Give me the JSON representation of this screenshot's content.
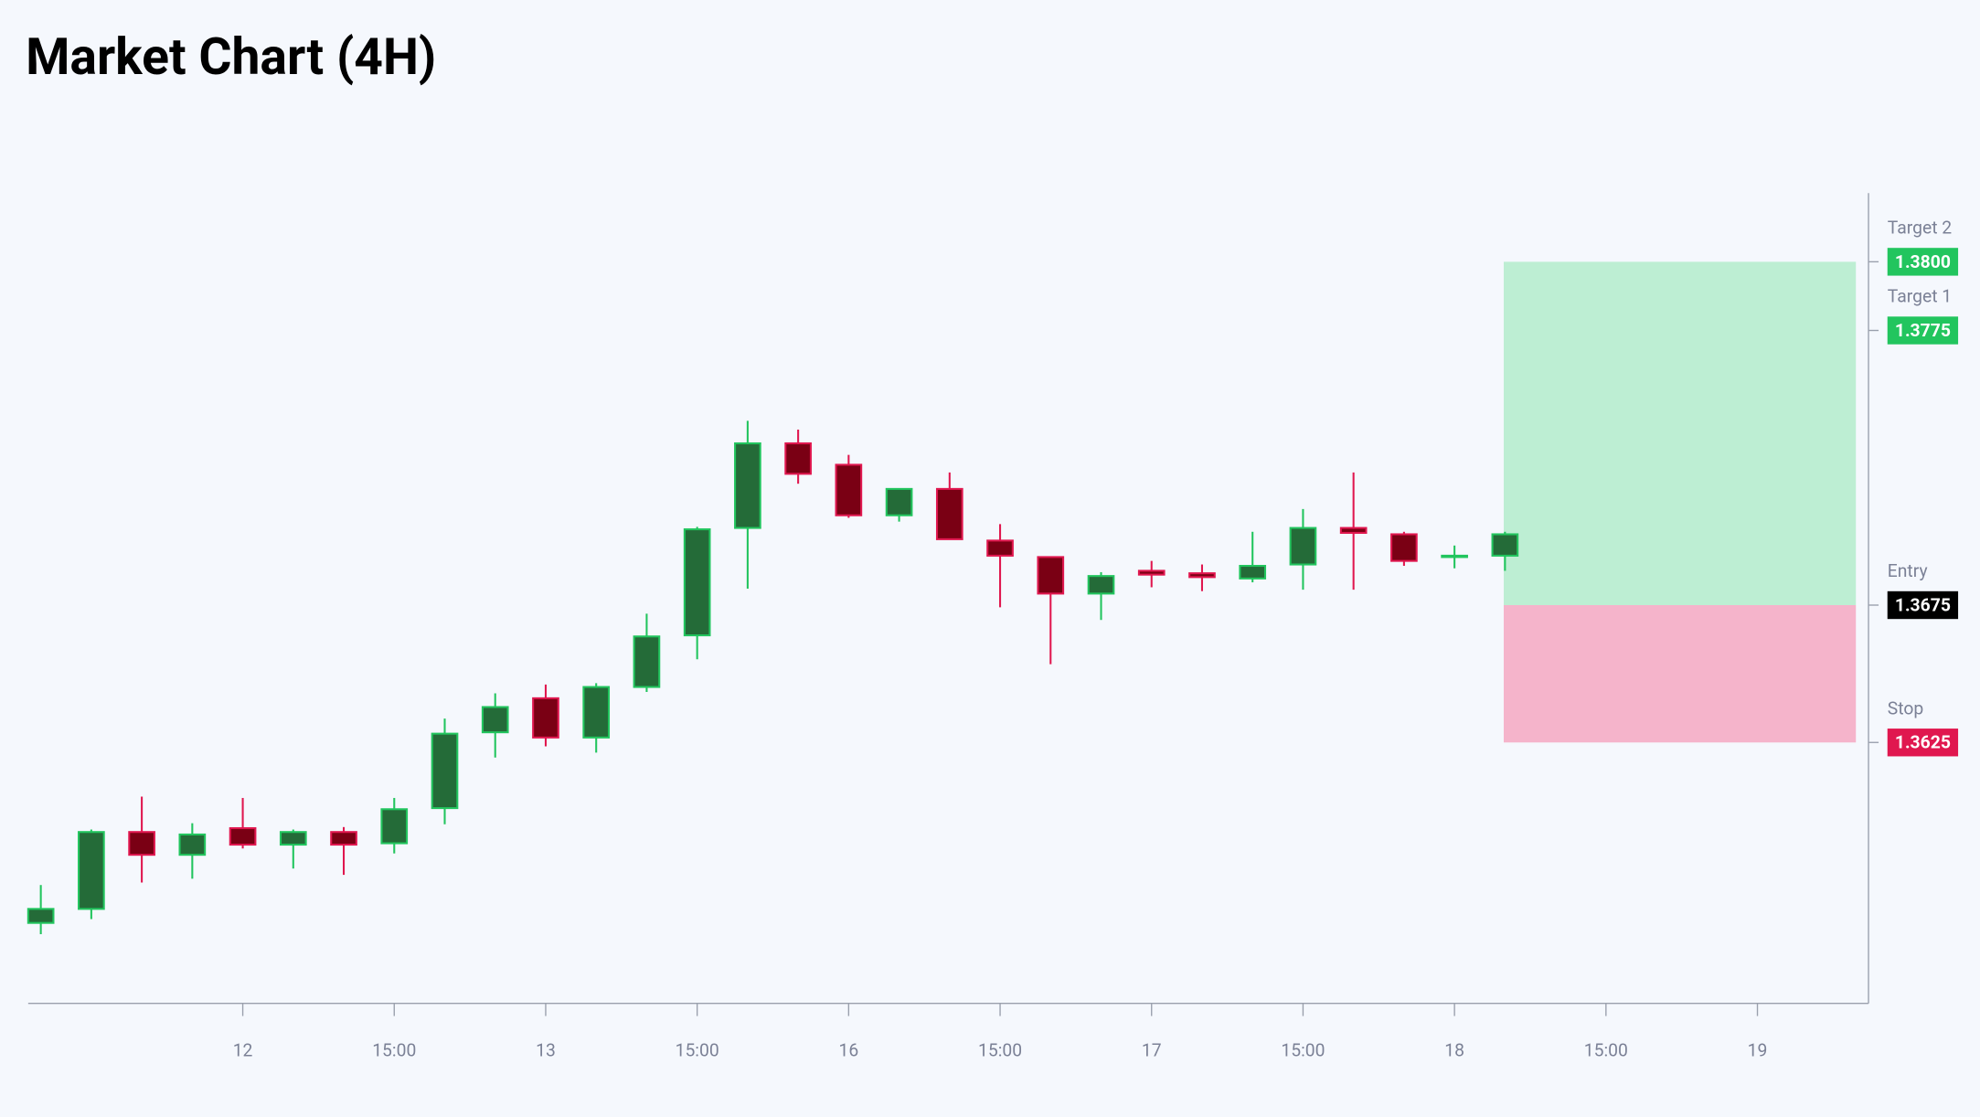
{
  "chart_data": {
    "type": "candlestick",
    "title": "Market Chart (4H)",
    "open": [
      1.35593,
      1.35644,
      1.35924,
      1.35841,
      1.35938,
      1.35878,
      1.35924,
      1.35883,
      1.36011,
      1.36287,
      1.36411,
      1.36268,
      1.36452,
      1.3664,
      1.37031,
      1.37339,
      1.37261,
      1.37077,
      1.37173,
      1.36985,
      1.36925,
      1.36792,
      1.36875,
      1.36866,
      1.36847,
      1.36898,
      1.37031,
      1.37008,
      1.36925,
      1.3693
    ],
    "high": [
      1.35731,
      1.35933,
      1.36053,
      1.35956,
      1.36048,
      1.35933,
      1.35942,
      1.36048,
      1.36337,
      1.36429,
      1.36461,
      1.36466,
      1.36719,
      1.37035,
      1.37421,
      1.37389,
      1.37297,
      1.37173,
      1.37233,
      1.37045,
      1.36925,
      1.3687,
      1.36911,
      1.36898,
      1.37017,
      1.371,
      1.37233,
      1.37017,
      1.36967,
      1.37017
    ],
    "low": [
      1.35552,
      1.35607,
      1.3574,
      1.35754,
      1.35864,
      1.35791,
      1.35768,
      1.35846,
      1.35952,
      1.36195,
      1.36236,
      1.36213,
      1.36434,
      1.36553,
      1.3681,
      1.37192,
      1.37068,
      1.37054,
      1.3699,
      1.36742,
      1.36535,
      1.36696,
      1.36815,
      1.36801,
      1.36833,
      1.36806,
      1.36806,
      1.36893,
      1.36884,
      1.36875
    ],
    "close": [
      1.35644,
      1.35924,
      1.35841,
      1.35915,
      1.35878,
      1.35924,
      1.35878,
      1.36007,
      1.36282,
      1.36379,
      1.36268,
      1.36452,
      1.36636,
      1.37026,
      1.37339,
      1.37228,
      1.37077,
      1.37173,
      1.3699,
      1.3693,
      1.36792,
      1.36856,
      1.36861,
      1.36852,
      1.36893,
      1.37031,
      1.37013,
      1.36911,
      1.3693,
      1.37008
    ],
    "up_color": "#22c55e",
    "up_fill": "#246b38",
    "down_color": "#e0174f",
    "down_fill": "#7a0014",
    "xlim": [
      -0.25,
      36.2
    ],
    "xticks": [
      {
        "value": 4,
        "label": "12"
      },
      {
        "value": 7,
        "label": "15:00"
      },
      {
        "value": 10,
        "label": "13"
      },
      {
        "value": 13,
        "label": "15:00"
      },
      {
        "value": 16,
        "label": "16"
      },
      {
        "value": 19,
        "label": "15:00"
      },
      {
        "value": 22,
        "label": "17"
      },
      {
        "value": 25,
        "label": "15:00"
      },
      {
        "value": 28,
        "label": "18"
      },
      {
        "value": 31,
        "label": "15:00"
      },
      {
        "value": 34,
        "label": "19"
      }
    ],
    "ylim": [
      1.353,
      1.3825
    ],
    "levels": [
      {
        "name": "Target 2",
        "value": 1.38,
        "value_label": "1.3800",
        "color": "#22c55e"
      },
      {
        "name": "Target 1",
        "value": 1.3775,
        "value_label": "1.3775",
        "color": "#22c55e"
      },
      {
        "name": "Entry",
        "value": 1.3675,
        "value_label": "1.3675",
        "color": "#000000"
      },
      {
        "name": "Stop",
        "value": 1.3625,
        "value_label": "1.3625",
        "color": "#e0174f"
      }
    ],
    "profit_color": "#bdeed3",
    "loss_color": "#f5b4cb"
  }
}
